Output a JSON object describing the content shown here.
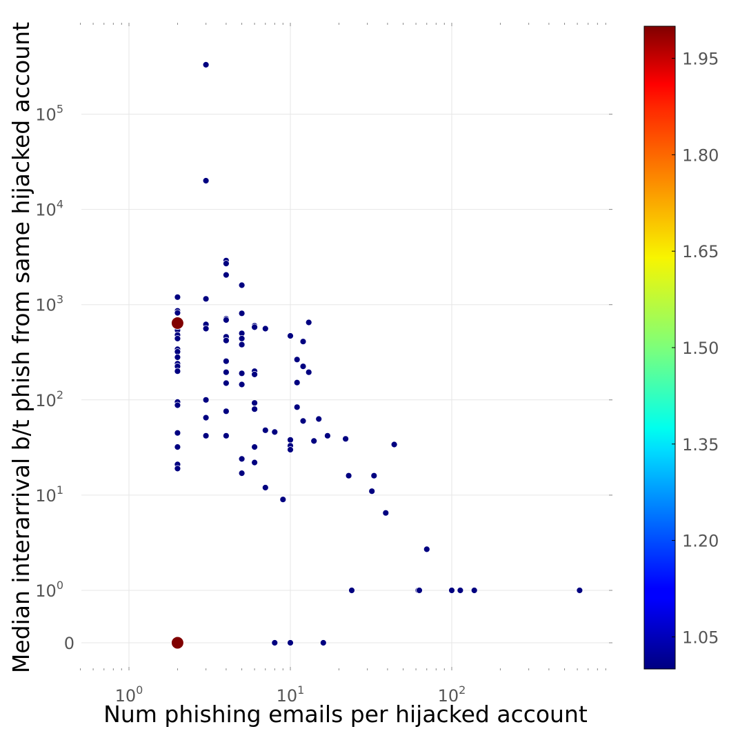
{
  "chart_data": {
    "type": "scatter",
    "xlabel": "Num phishing emails per hijacked account",
    "ylabel": "Median interarrival b/t phish from same hijacked account",
    "xscale": "log",
    "yscale": "symlog",
    "xlim": [
      0.5,
      900
    ],
    "grid": true,
    "x_ticks": [
      {
        "value": 1,
        "base": "10",
        "exp": "0"
      },
      {
        "value": 10,
        "base": "10",
        "exp": "1"
      },
      {
        "value": 100,
        "base": "10",
        "exp": "2"
      }
    ],
    "y_ticks": [
      {
        "value": 0,
        "base": "0",
        "exp": ""
      },
      {
        "value": 1,
        "base": "10",
        "exp": "0"
      },
      {
        "value": 10,
        "base": "10",
        "exp": "1"
      },
      {
        "value": 100,
        "base": "10",
        "exp": "2"
      },
      {
        "value": 1000,
        "base": "10",
        "exp": "3"
      },
      {
        "value": 10000,
        "base": "10",
        "exp": "4"
      },
      {
        "value": 100000,
        "base": "10",
        "exp": "5"
      }
    ],
    "colorbar": {
      "colormap": "jet",
      "range": [
        1.0,
        2.0
      ],
      "ticks": [
        "1.05",
        "1.20",
        "1.35",
        "1.50",
        "1.65",
        "1.80",
        "1.95"
      ]
    },
    "series": [
      {
        "color_value": 1.0,
        "color": "#000080",
        "points": [
          [
            2,
            1200
          ],
          [
            2,
            860
          ],
          [
            2,
            820
          ],
          [
            2,
            540
          ],
          [
            2,
            480
          ],
          [
            2,
            440
          ],
          [
            2,
            340
          ],
          [
            2,
            320
          ],
          [
            2,
            280
          ],
          [
            2,
            240
          ],
          [
            2,
            225
          ],
          [
            2,
            200
          ],
          [
            2,
            95
          ],
          [
            2,
            88
          ],
          [
            2,
            45
          ],
          [
            2,
            32
          ],
          [
            2,
            21
          ],
          [
            2,
            19
          ],
          [
            3,
            330000
          ],
          [
            3,
            20000
          ],
          [
            3,
            1150
          ],
          [
            3,
            620
          ],
          [
            3,
            560
          ],
          [
            3,
            100
          ],
          [
            3,
            65
          ],
          [
            3,
            42
          ],
          [
            4,
            2900
          ],
          [
            4,
            2700
          ],
          [
            4,
            2050
          ],
          [
            4,
            710
          ],
          [
            4,
            690
          ],
          [
            4,
            460
          ],
          [
            4,
            420
          ],
          [
            4,
            255
          ],
          [
            4,
            195
          ],
          [
            4,
            150
          ],
          [
            4,
            76
          ],
          [
            4,
            42
          ],
          [
            5,
            1600
          ],
          [
            5,
            810
          ],
          [
            5,
            500
          ],
          [
            5,
            440
          ],
          [
            5,
            380
          ],
          [
            5,
            190
          ],
          [
            5,
            145
          ],
          [
            5,
            24
          ],
          [
            5,
            17
          ],
          [
            6,
            600
          ],
          [
            6,
            580
          ],
          [
            6,
            200
          ],
          [
            6,
            185
          ],
          [
            6,
            93
          ],
          [
            6,
            80
          ],
          [
            6,
            32
          ],
          [
            6,
            22
          ],
          [
            7,
            560
          ],
          [
            7,
            48
          ],
          [
            7,
            12
          ],
          [
            8,
            46
          ],
          [
            8,
            0
          ],
          [
            9,
            9
          ],
          [
            10,
            470
          ],
          [
            10,
            38
          ],
          [
            10,
            33
          ],
          [
            10,
            30
          ],
          [
            10,
            0
          ],
          [
            11,
            265
          ],
          [
            11,
            152
          ],
          [
            11,
            84
          ],
          [
            12,
            410
          ],
          [
            12,
            225
          ],
          [
            12,
            60
          ],
          [
            13,
            650
          ],
          [
            13,
            195
          ],
          [
            14,
            37
          ],
          [
            15,
            63
          ],
          [
            16,
            0
          ],
          [
            17,
            42
          ],
          [
            22,
            39
          ],
          [
            23,
            16
          ],
          [
            24,
            1
          ],
          [
            32,
            11
          ],
          [
            33,
            16
          ],
          [
            39,
            6.5
          ],
          [
            44,
            34
          ],
          [
            62,
            1
          ],
          [
            63,
            1
          ],
          [
            70,
            2.7
          ],
          [
            100,
            1
          ],
          [
            113,
            1
          ],
          [
            138,
            1
          ],
          [
            620,
            1
          ]
        ]
      },
      {
        "color_value": 2.0,
        "color": "#800000",
        "points": [
          [
            2,
            640
          ],
          [
            2,
            0
          ]
        ]
      }
    ]
  }
}
